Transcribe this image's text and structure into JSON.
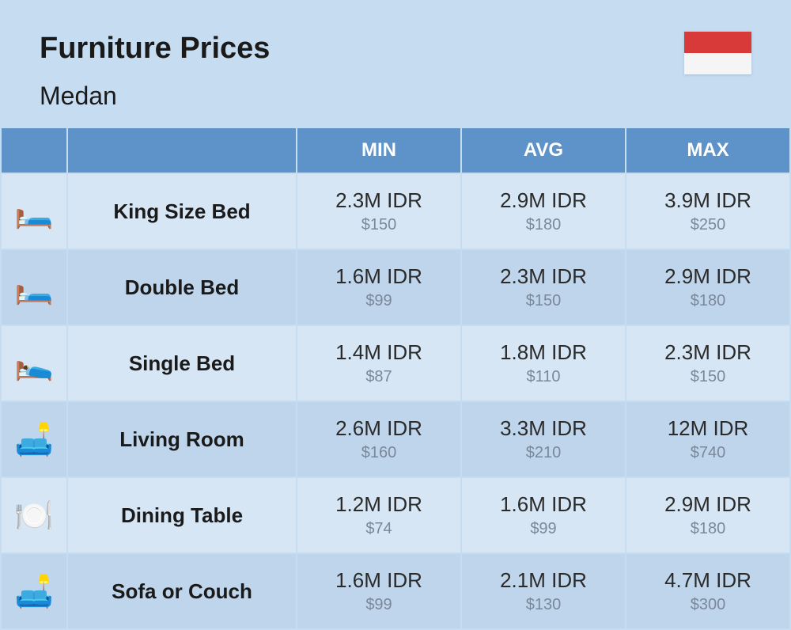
{
  "header": {
    "title": "Furniture Prices",
    "subtitle": "Medan",
    "flag": {
      "top_color": "#d83a3a",
      "bottom_color": "#f5f5f5"
    }
  },
  "table": {
    "headers": {
      "min": "MIN",
      "avg": "AVG",
      "max": "MAX"
    },
    "header_bg": "#5d93c9",
    "header_text_color": "#ffffff",
    "row_even_bg": "#d7e6f4",
    "row_odd_bg": "#bfd5eb",
    "border_color": "#c5dcf1",
    "idr_color": "#2a2a2a",
    "usd_color": "#7a8899",
    "rows": [
      {
        "icon": "🛏️",
        "name": "King Size Bed",
        "min_idr": "2.3M IDR",
        "min_usd": "$150",
        "avg_idr": "2.9M IDR",
        "avg_usd": "$180",
        "max_idr": "3.9M IDR",
        "max_usd": "$250"
      },
      {
        "icon": "🛏️",
        "name": "Double Bed",
        "min_idr": "1.6M IDR",
        "min_usd": "$99",
        "avg_idr": "2.3M IDR",
        "avg_usd": "$150",
        "max_idr": "2.9M IDR",
        "max_usd": "$180"
      },
      {
        "icon": "🛌",
        "name": "Single Bed",
        "min_idr": "1.4M IDR",
        "min_usd": "$87",
        "avg_idr": "1.8M IDR",
        "avg_usd": "$110",
        "max_idr": "2.3M IDR",
        "max_usd": "$150"
      },
      {
        "icon": "🛋️",
        "name": "Living Room",
        "min_idr": "2.6M IDR",
        "min_usd": "$160",
        "avg_idr": "3.3M IDR",
        "avg_usd": "$210",
        "max_idr": "12M IDR",
        "max_usd": "$740"
      },
      {
        "icon": "🍽️",
        "name": "Dining Table",
        "min_idr": "1.2M IDR",
        "min_usd": "$74",
        "avg_idr": "1.6M IDR",
        "avg_usd": "$99",
        "max_idr": "2.9M IDR",
        "max_usd": "$180"
      },
      {
        "icon": "🛋️",
        "name": "Sofa or Couch",
        "min_idr": "1.6M IDR",
        "min_usd": "$99",
        "avg_idr": "2.1M IDR",
        "avg_usd": "$130",
        "max_idr": "4.7M IDR",
        "max_usd": "$300"
      }
    ]
  },
  "page_bg": "#c5dcf1"
}
